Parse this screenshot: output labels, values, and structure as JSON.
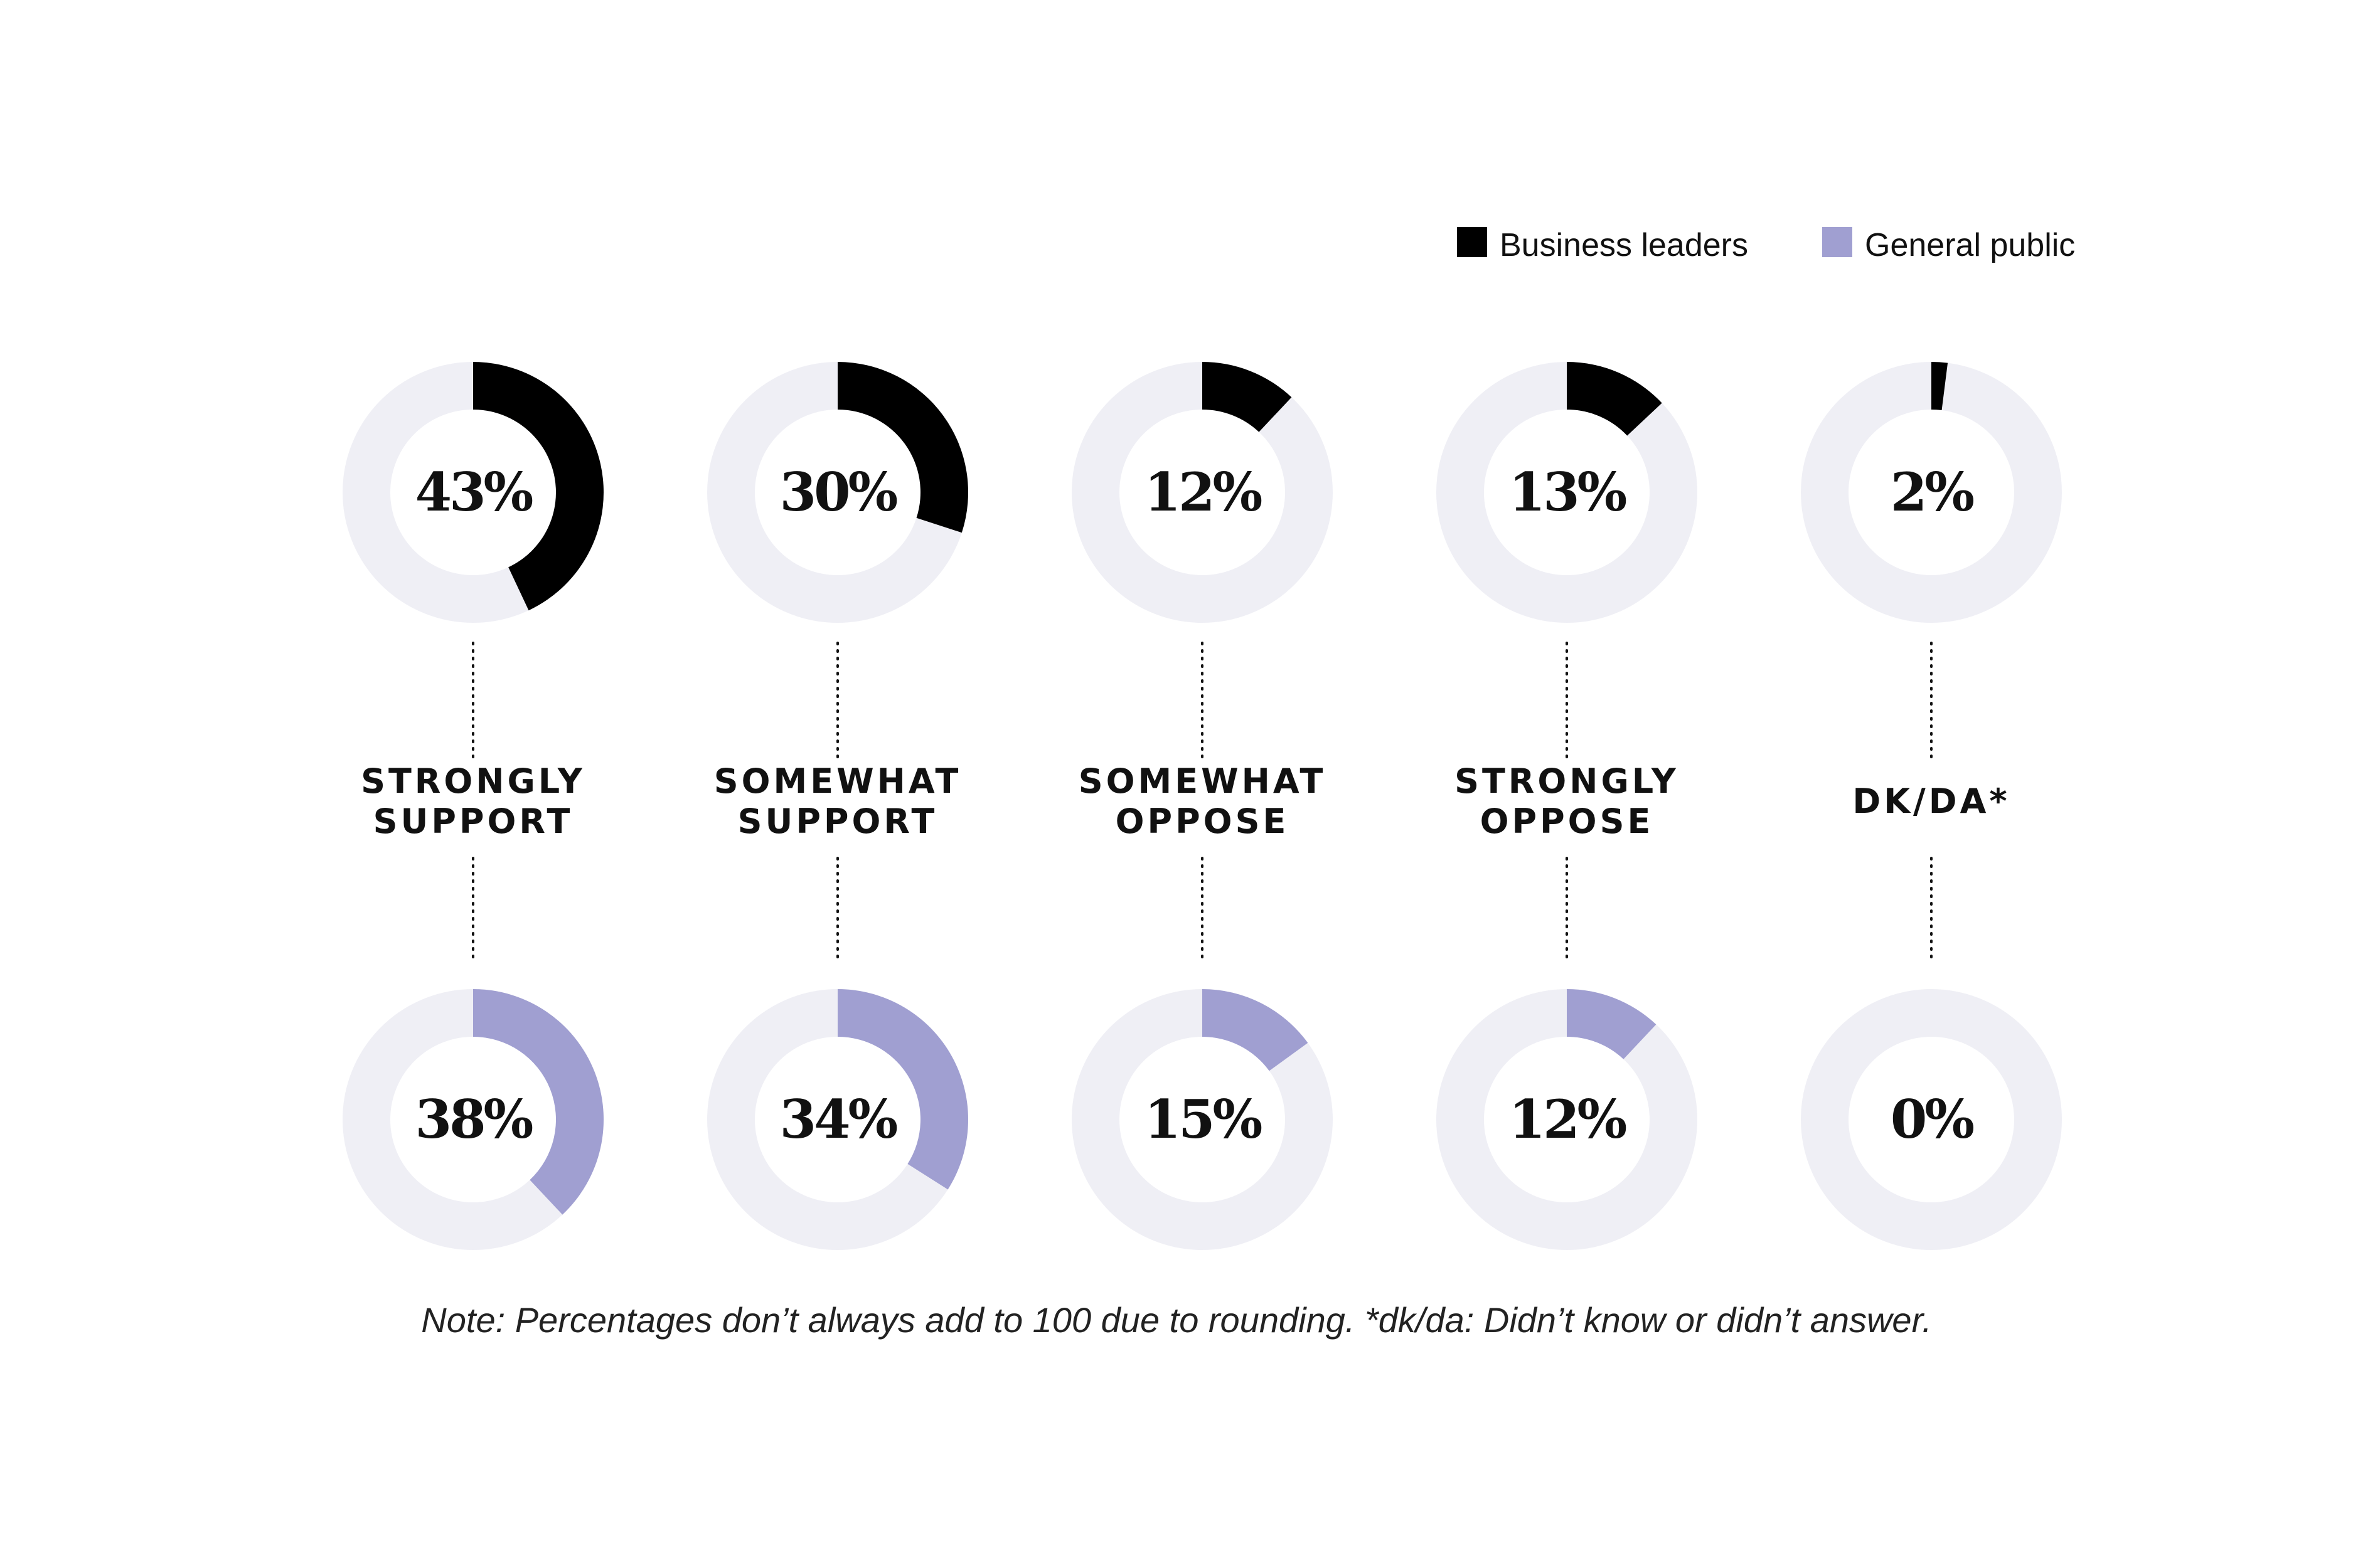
{
  "chart_data": {
    "type": "pie",
    "variant": "donut-grid",
    "categories": [
      "STRONGLY SUPPORT",
      "SOMEWHAT SUPPORT",
      "SOMEWHAT OPPOSE",
      "STRONGLY OPPOSE",
      "DK/DA*"
    ],
    "series": [
      {
        "name": "Business leaders",
        "color": "#000000",
        "values": [
          43,
          30,
          12,
          13,
          2
        ],
        "labels": [
          "43%",
          "30%",
          "12%",
          "13%",
          "2%"
        ]
      },
      {
        "name": "General public",
        "color": "#a09fd1",
        "values": [
          38,
          34,
          15,
          12,
          0
        ],
        "labels": [
          "38%",
          "34%",
          "15%",
          "12%",
          "0%"
        ]
      }
    ],
    "track_color": "#efeff5",
    "legend_position": "top-right",
    "note": "Note: Percentages don’t always add to 100 due to rounding. *dk/da: Didn’t know or didn’t answer."
  }
}
